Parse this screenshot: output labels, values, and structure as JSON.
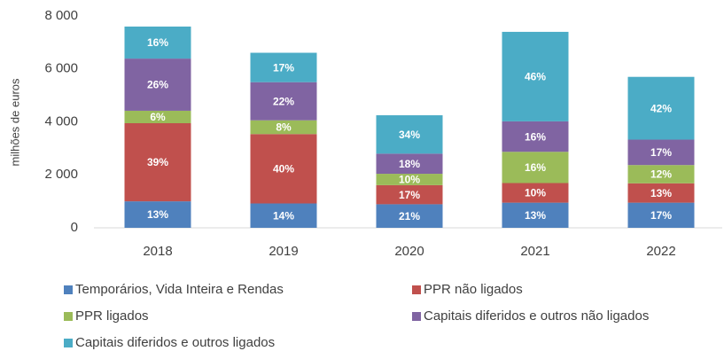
{
  "chart_data": {
    "type": "bar",
    "stacked": true,
    "y_label": "milhões de euros",
    "categories": [
      "2018",
      "2019",
      "2020",
      "2021",
      "2022"
    ],
    "series": [
      {
        "name": "Temporários, Vida Inteira e Rendas",
        "color": "#4f81bd",
        "values": [
          1000,
          920,
          890,
          950,
          950
        ],
        "value_labels": [
          "13%",
          "14%",
          "21%",
          "13%",
          "17%"
        ]
      },
      {
        "name": "PPR não ligados",
        "color": "#c0504d",
        "values": [
          2950,
          2620,
          720,
          740,
          730
        ],
        "value_labels": [
          "39%",
          "40%",
          "17%",
          "10%",
          "13%"
        ]
      },
      {
        "name": "PPR ligados",
        "color": "#9bbb59",
        "values": [
          470,
          520,
          430,
          1180,
          690
        ],
        "value_labels": [
          "6%",
          "8%",
          "10%",
          "16%",
          "12%"
        ]
      },
      {
        "name": "Capitais diferidos e outros não ligados",
        "color": "#8064a2",
        "values": [
          1970,
          1440,
          760,
          1150,
          960
        ],
        "value_labels": [
          "26%",
          "22%",
          "18%",
          "16%",
          "17%"
        ]
      },
      {
        "name": "Capitais diferidos e outros ligados",
        "color": "#4bacc6",
        "values": [
          1210,
          1110,
          1450,
          3380,
          2370
        ],
        "value_labels": [
          "16%",
          "17%",
          "34%",
          "46%",
          "42%"
        ]
      }
    ],
    "ylim": [
      0,
      8000
    ],
    "yticks": [
      0,
      {
        "value": 2000,
        "label": "2 000"
      },
      {
        "value": 4000,
        "label": "4 000"
      },
      {
        "value": 6000,
        "label": "6 000"
      },
      {
        "value": 8000,
        "label": "8 000"
      }
    ],
    "grid": false,
    "legend": "bottom"
  }
}
